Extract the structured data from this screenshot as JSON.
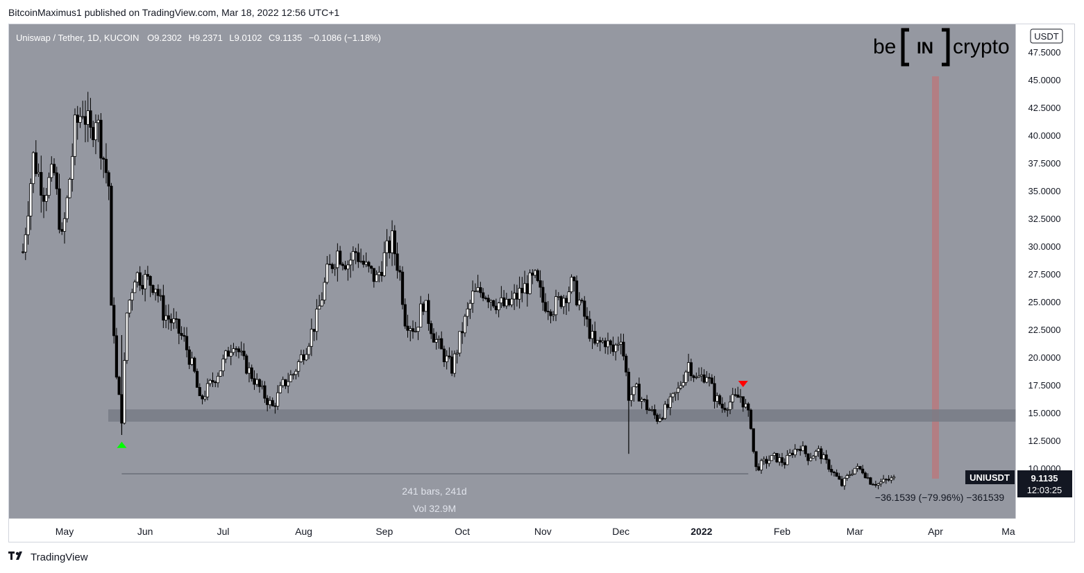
{
  "publisher_line": "BitcoinMaximus1 published on TradingView.com, Mar 18, 2022 12:56 UTC+1",
  "footer": {
    "brand": "TradingView"
  },
  "logo": {
    "left": "be",
    "mid": "IN",
    "right": "crypto"
  },
  "header": {
    "symbol": "Uniswap / Tether, 1D, KUCOIN",
    "o_label": "O",
    "o_value": "9.2302",
    "h_label": "H",
    "h_value": "9.2371",
    "l_label": "L",
    "l_value": "9.0102",
    "c_label": "C",
    "c_value": "9.1135",
    "change": "−0.1086 (−1.18%)"
  },
  "price_axis": {
    "currency": "USDT"
  },
  "last_price": {
    "symbol": "UNIUSDT",
    "value": "9.1135",
    "countdown": "12:03:25"
  },
  "measure": {
    "bars": "241 bars, 241d",
    "volume": "Vol 32.9M",
    "change": "−36.1539 (−79.96%) −361539"
  },
  "colors": {
    "background": "#9598a1",
    "candle": "#000000",
    "support_zone": "#787b86",
    "up_marker": "#00ff00",
    "down_marker": "#ff0000",
    "vertical_band": "#b8797e",
    "last_price_badge": "#131722"
  },
  "chart_data": {
    "type": "candlestick",
    "title": "Uniswap / Tether, 1D, KUCOIN",
    "ylabel": "USDT",
    "ylim": [
      6.5,
      49
    ],
    "y_ticks": [
      "47.5000",
      "45.0000",
      "42.5000",
      "40.0000",
      "37.5000",
      "35.0000",
      "32.5000",
      "30.0000",
      "27.5000",
      "25.0000",
      "22.5000",
      "20.0000",
      "17.5000",
      "15.0000",
      "12.5000",
      "10.0000"
    ],
    "x_ticks": [
      "May",
      "Jun",
      "Jul",
      "Aug",
      "Sep",
      "Oct",
      "Nov",
      "Dec",
      "2022",
      "Feb",
      "Mar",
      "Apr",
      "Ma"
    ],
    "support_zone": [
      14.2,
      15.3
    ],
    "markers": [
      {
        "type": "up-arrow",
        "date": "2021-05-23",
        "price": 12.2
      },
      {
        "type": "down-arrow",
        "date": "2022-01-17",
        "price": 17.5
      }
    ],
    "vertical_band_date": "2022-04-01",
    "measure_range": {
      "from": "2021-05-23",
      "to": "2022-01-19",
      "price": 9.5
    },
    "price_path": [
      [
        "2021-04-15",
        29.5
      ],
      [
        "2021-04-19",
        38.0
      ],
      [
        "2021-04-23",
        35.0
      ],
      [
        "2021-04-27",
        36.5
      ],
      [
        "2021-04-30",
        30.5
      ],
      [
        "2021-05-02",
        34.0
      ],
      [
        "2021-05-05",
        40.5
      ],
      [
        "2021-05-08",
        42.5
      ],
      [
        "2021-05-11",
        40.0
      ],
      [
        "2021-05-13",
        42.0
      ],
      [
        "2021-05-16",
        38.0
      ],
      [
        "2021-05-18",
        35.5
      ],
      [
        "2021-05-19",
        24.0
      ],
      [
        "2021-05-20",
        22.5
      ],
      [
        "2021-05-21",
        18.0
      ],
      [
        "2021-05-23",
        14.5
      ],
      [
        "2021-05-25",
        24.0
      ],
      [
        "2021-05-28",
        27.5
      ],
      [
        "2021-06-01",
        27.0
      ],
      [
        "2021-06-05",
        26.5
      ],
      [
        "2021-06-08",
        24.0
      ],
      [
        "2021-06-12",
        23.0
      ],
      [
        "2021-06-16",
        21.5
      ],
      [
        "2021-06-20",
        18.5
      ],
      [
        "2021-06-22",
        16.0
      ],
      [
        "2021-06-26",
        17.5
      ],
      [
        "2021-06-30",
        19.0
      ],
      [
        "2021-07-05",
        21.5
      ],
      [
        "2021-07-09",
        19.5
      ],
      [
        "2021-07-13",
        18.0
      ],
      [
        "2021-07-17",
        16.5
      ],
      [
        "2021-07-20",
        15.5
      ],
      [
        "2021-07-24",
        17.5
      ],
      [
        "2021-07-28",
        18.5
      ],
      [
        "2021-08-02",
        21.0
      ],
      [
        "2021-08-06",
        23.5
      ],
      [
        "2021-08-10",
        27.5
      ],
      [
        "2021-08-14",
        29.5
      ],
      [
        "2021-08-18",
        28.5
      ],
      [
        "2021-08-21",
        29.5
      ],
      [
        "2021-08-25",
        28.0
      ],
      [
        "2021-08-29",
        27.0
      ],
      [
        "2021-09-01",
        29.0
      ],
      [
        "2021-09-04",
        30.5
      ],
      [
        "2021-09-07",
        27.5
      ],
      [
        "2021-09-09",
        23.5
      ],
      [
        "2021-09-13",
        22.5
      ],
      [
        "2021-09-16",
        25.0
      ],
      [
        "2021-09-20",
        22.0
      ],
      [
        "2021-09-23",
        20.5
      ],
      [
        "2021-09-27",
        19.0
      ],
      [
        "2021-10-01",
        22.5
      ],
      [
        "2021-10-05",
        25.5
      ],
      [
        "2021-10-09",
        26.0
      ],
      [
        "2021-10-14",
        25.0
      ],
      [
        "2021-10-18",
        24.5
      ],
      [
        "2021-10-22",
        25.5
      ],
      [
        "2021-10-26",
        26.5
      ],
      [
        "2021-10-29",
        27.0
      ],
      [
        "2021-11-01",
        25.0
      ],
      [
        "2021-11-05",
        24.5
      ],
      [
        "2021-11-09",
        25.5
      ],
      [
        "2021-11-12",
        26.5
      ],
      [
        "2021-11-15",
        25.0
      ],
      [
        "2021-11-18",
        23.0
      ],
      [
        "2021-11-21",
        21.0
      ],
      [
        "2021-11-25",
        21.5
      ],
      [
        "2021-11-28",
        20.5
      ],
      [
        "2021-12-01",
        22.0
      ],
      [
        "2021-12-03",
        18.5
      ],
      [
        "2021-12-04",
        16.5
      ],
      [
        "2021-12-07",
        17.0
      ],
      [
        "2021-12-11",
        15.5
      ],
      [
        "2021-12-15",
        14.5
      ],
      [
        "2021-12-19",
        15.5
      ],
      [
        "2021-12-23",
        17.0
      ],
      [
        "2021-12-27",
        19.5
      ],
      [
        "2021-12-30",
        18.0
      ],
      [
        "2022-01-03",
        18.5
      ],
      [
        "2022-01-06",
        16.5
      ],
      [
        "2022-01-09",
        15.5
      ],
      [
        "2022-01-12",
        16.0
      ],
      [
        "2022-01-16",
        16.5
      ],
      [
        "2022-01-18",
        15.5
      ],
      [
        "2022-01-20",
        14.0
      ],
      [
        "2022-01-21",
        11.5
      ],
      [
        "2022-01-22",
        10.0
      ],
      [
        "2022-01-25",
        10.5
      ],
      [
        "2022-01-29",
        11.0
      ],
      [
        "2022-02-02",
        10.5
      ],
      [
        "2022-02-05",
        11.5
      ],
      [
        "2022-02-08",
        12.0
      ],
      [
        "2022-02-11",
        11.0
      ],
      [
        "2022-02-15",
        11.5
      ],
      [
        "2022-02-18",
        10.5
      ],
      [
        "2022-02-21",
        9.5
      ],
      [
        "2022-02-24",
        8.5
      ],
      [
        "2022-02-27",
        9.5
      ],
      [
        "2022-03-01",
        10.0
      ],
      [
        "2022-03-04",
        9.8
      ],
      [
        "2022-03-07",
        8.8
      ],
      [
        "2022-03-10",
        8.6
      ],
      [
        "2022-03-13",
        8.9
      ],
      [
        "2022-03-17",
        9.1
      ]
    ]
  }
}
